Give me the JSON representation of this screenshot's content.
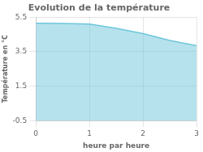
{
  "chart_data": {
    "type": "area",
    "title": "Evolution de la température",
    "xlabel": "heure par heure",
    "ylabel": "Température en °C",
    "x": [
      0,
      0.5,
      1.0,
      1.5,
      2.0,
      2.5,
      3.0
    ],
    "values": [
      5.15,
      5.13,
      5.1,
      4.85,
      4.55,
      4.15,
      3.85
    ],
    "color": "#6ec6dc",
    "xlim": [
      0,
      3
    ],
    "ylim": [
      -0.5,
      5.5
    ],
    "xticks": [
      0,
      1,
      2,
      3
    ],
    "yticks": [
      -0.5,
      1.5,
      3.5,
      5.5
    ],
    "grid": true
  }
}
